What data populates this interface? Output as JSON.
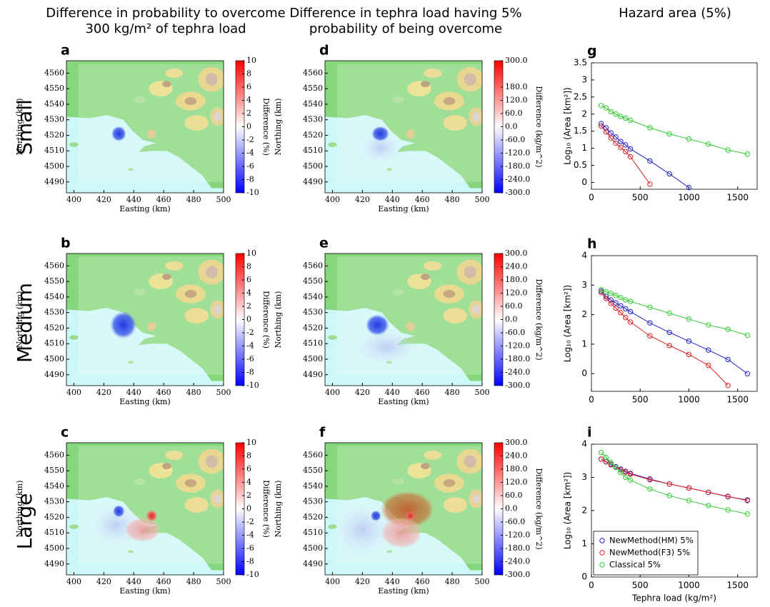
{
  "column_titles": [
    [
      "Difference in probability to overcome",
      "300 kg/m² of tephra load"
    ],
    [
      "Difference in  tephra load having 5%",
      "probability of being overcome"
    ],
    [
      "Hazard area  (5%)"
    ]
  ],
  "row_labels": [
    "Small",
    "Medium",
    "Large"
  ],
  "chart_data": [
    {
      "type": "heatmap",
      "panel": "a",
      "xlabel": "Easting (km)",
      "ylabel": "Northing (km)",
      "xlim": [
        395,
        500
      ],
      "ylim": [
        4483,
        4568
      ],
      "xticks": [
        400,
        420,
        440,
        460,
        480,
        500
      ],
      "yticks": [
        4490,
        4500,
        4510,
        4520,
        4530,
        4540,
        4550,
        4560
      ],
      "colorbar": {
        "label": "Difference (%)",
        "lim": [
          -10,
          10
        ],
        "colors": [
          "#0000ff",
          "#ffffff",
          "#ff0000"
        ],
        "ticks": [
          10,
          8,
          6,
          4,
          2,
          0,
          -2,
          -4,
          -6,
          -8,
          -10
        ]
      }
    },
    {
      "type": "heatmap",
      "panel": "b",
      "xlabel": "Easting (km)",
      "ylabel": "Northing (km)",
      "xlim": [
        395,
        500
      ],
      "ylim": [
        4483,
        4568
      ],
      "xticks": [
        400,
        420,
        440,
        460,
        480,
        500
      ],
      "yticks": [
        4490,
        4500,
        4510,
        4520,
        4530,
        4540,
        4550,
        4560
      ],
      "colorbar": {
        "label": "Difference (%)",
        "lim": [
          -10,
          10
        ],
        "colors": [
          "#0000ff",
          "#ffffff",
          "#ff0000"
        ],
        "ticks": [
          10,
          8,
          6,
          4,
          2,
          0,
          -2,
          -4,
          -6,
          -8,
          -10
        ]
      }
    },
    {
      "type": "heatmap",
      "panel": "c",
      "xlabel": "Easting (km)",
      "ylabel": "Northing (km)",
      "xlim": [
        395,
        500
      ],
      "ylim": [
        4483,
        4568
      ],
      "xticks": [
        400,
        420,
        440,
        460,
        480,
        500
      ],
      "yticks": [
        4490,
        4500,
        4510,
        4520,
        4530,
        4540,
        4550,
        4560
      ],
      "colorbar": {
        "label": "Difference (%)",
        "lim": [
          -10,
          10
        ],
        "colors": [
          "#0000ff",
          "#ffffff",
          "#ff0000"
        ],
        "ticks": [
          10,
          8,
          6,
          4,
          2,
          0,
          -2,
          -4,
          -6,
          -8,
          -10
        ]
      }
    },
    {
      "type": "heatmap",
      "panel": "d",
      "xlabel": "Easting (km)",
      "ylabel": "Northing (km)",
      "xlim": [
        395,
        500
      ],
      "ylim": [
        4483,
        4568
      ],
      "xticks": [
        400,
        420,
        440,
        460,
        480,
        500
      ],
      "yticks": [
        4490,
        4500,
        4510,
        4520,
        4530,
        4540,
        4550,
        4560
      ],
      "colorbar": {
        "label": "Difference (kg/m^2)",
        "lim": [
          -300,
          300
        ],
        "colors": [
          "#0000ff",
          "#ffffff",
          "#ff0000"
        ],
        "ticks": [
          {
            "value": 300,
            "label": "300.0"
          },
          {
            "value": 180,
            "label": "180.0"
          },
          {
            "value": 120,
            "label": "120.0"
          },
          {
            "value": 60,
            "label": "60.0"
          },
          {
            "value": 0,
            "label": "0.0"
          },
          {
            "value": -60,
            "label": "-60.0"
          },
          {
            "value": -120,
            "label": "-120.0"
          },
          {
            "value": -180,
            "label": "-180.0"
          },
          {
            "value": -240,
            "label": "-240.0"
          },
          {
            "value": -300,
            "label": "-300.0"
          }
        ]
      }
    },
    {
      "type": "heatmap",
      "panel": "e",
      "xlabel": "Easting (km)",
      "ylabel": "Northing (km)",
      "xlim": [
        395,
        500
      ],
      "ylim": [
        4483,
        4568
      ],
      "xticks": [
        400,
        420,
        440,
        460,
        480,
        500
      ],
      "yticks": [
        4490,
        4500,
        4510,
        4520,
        4530,
        4540,
        4550,
        4560
      ],
      "colorbar": {
        "label": "Difference (kg/m^2)",
        "lim": [
          -300,
          300
        ],
        "colors": [
          "#0000ff",
          "#ffffff",
          "#ff0000"
        ],
        "ticks": [
          {
            "value": 300,
            "label": "300.0"
          },
          {
            "value": 240,
            "label": "240.0"
          },
          {
            "value": 180,
            "label": "180.0"
          },
          {
            "value": 120,
            "label": "120.0"
          },
          {
            "value": 60,
            "label": "60.0"
          },
          {
            "value": 0,
            "label": "0.0"
          },
          {
            "value": -60,
            "label": "-60.0"
          },
          {
            "value": -120,
            "label": "-120.0"
          },
          {
            "value": -180,
            "label": "-180.0"
          },
          {
            "value": -240,
            "label": "-240.0"
          },
          {
            "value": -300,
            "label": "-300.0"
          }
        ]
      }
    },
    {
      "type": "heatmap",
      "panel": "f",
      "xlabel": "Easting (km)",
      "ylabel": "Northing (km)",
      "xlim": [
        395,
        500
      ],
      "ylim": [
        4483,
        4568
      ],
      "xticks": [
        400,
        420,
        440,
        460,
        480,
        500
      ],
      "yticks": [
        4490,
        4500,
        4510,
        4520,
        4530,
        4540,
        4550,
        4560
      ],
      "colorbar": {
        "label": "Difference (kg/m^2)",
        "lim": [
          -300,
          300
        ],
        "colors": [
          "#0000ff",
          "#ffffff",
          "#ff0000"
        ],
        "ticks": [
          {
            "value": 300,
            "label": "300.0"
          },
          {
            "value": 240,
            "label": "240.0"
          },
          {
            "value": 180,
            "label": "180.0"
          },
          {
            "value": 120,
            "label": "120.0"
          },
          {
            "value": 60,
            "label": "60.0"
          },
          {
            "value": 0,
            "label": "0.0"
          },
          {
            "value": -60,
            "label": "-60.0"
          },
          {
            "value": -120,
            "label": "-120.0"
          },
          {
            "value": -180,
            "label": "-180.0"
          },
          {
            "value": -240,
            "label": "-240.0"
          },
          {
            "value": -300,
            "label": "-300.0"
          }
        ]
      }
    },
    {
      "type": "line",
      "panel": "g",
      "ylabel": "Log₁₀ (Area [km²])",
      "xlim": [
        0,
        1700
      ],
      "ylim": [
        -0.2,
        3.5
      ],
      "xticks": [
        0,
        500,
        1000,
        1500
      ],
      "yticks": [
        0,
        0.5,
        1,
        1.5,
        2,
        2.5,
        3,
        3.5
      ],
      "series": [
        {
          "color": "#2222cc",
          "x": [
            100,
            150,
            200,
            250,
            300,
            350,
            400,
            600,
            800,
            1000
          ],
          "values": [
            1.72,
            1.6,
            1.45,
            1.33,
            1.2,
            1.1,
            0.98,
            0.63,
            0.25,
            -0.15
          ]
        },
        {
          "color": "#dd2222",
          "x": [
            100,
            150,
            200,
            250,
            300,
            350,
            400,
            600
          ],
          "values": [
            1.65,
            1.48,
            1.3,
            1.15,
            1.02,
            0.9,
            0.75,
            -0.05
          ]
        },
        {
          "color": "#33cc33",
          "x": [
            100,
            150,
            200,
            250,
            300,
            350,
            400,
            600,
            800,
            1000,
            1200,
            1400,
            1600
          ],
          "values": [
            2.25,
            2.18,
            2.07,
            2.0,
            1.93,
            1.88,
            1.82,
            1.6,
            1.42,
            1.27,
            1.12,
            0.95,
            0.83
          ]
        }
      ]
    },
    {
      "type": "line",
      "panel": "h",
      "ylabel": "Log₁₀ (Area [km²])",
      "xlim": [
        0,
        1700
      ],
      "ylim": [
        -0.6,
        4
      ],
      "xticks": [
        0,
        500,
        1000,
        1500
      ],
      "yticks": [
        0,
        1,
        2,
        3,
        4
      ],
      "series": [
        {
          "color": "#2222cc",
          "x": [
            100,
            150,
            200,
            250,
            300,
            350,
            400,
            600,
            800,
            1000,
            1200,
            1400,
            1600
          ],
          "values": [
            2.8,
            2.62,
            2.5,
            2.4,
            2.3,
            2.2,
            2.1,
            1.72,
            1.4,
            1.1,
            0.8,
            0.48,
            0.0
          ]
        },
        {
          "color": "#dd2222",
          "x": [
            100,
            150,
            200,
            250,
            300,
            350,
            400,
            600,
            800,
            1000,
            1200,
            1400
          ],
          "values": [
            2.75,
            2.55,
            2.38,
            2.22,
            2.07,
            1.9,
            1.75,
            1.28,
            0.95,
            0.65,
            0.28,
            -0.4
          ]
        },
        {
          "color": "#33cc33",
          "x": [
            100,
            150,
            200,
            250,
            300,
            350,
            400,
            600,
            800,
            1000,
            1200,
            1400,
            1600
          ],
          "values": [
            2.85,
            2.78,
            2.72,
            2.65,
            2.58,
            2.5,
            2.45,
            2.25,
            2.05,
            1.85,
            1.65,
            1.5,
            1.3
          ]
        }
      ]
    },
    {
      "type": "line",
      "panel": "i",
      "xlabel": "Tephra load (kg/m²)",
      "ylabel": "Log₁₀ (Area [km²])",
      "xlim": [
        0,
        1700
      ],
      "ylim": [
        0,
        4
      ],
      "xticks": [
        0,
        500,
        1000,
        1500
      ],
      "yticks": [
        0,
        1,
        2,
        3,
        4
      ],
      "legend": "lower left",
      "series": [
        {
          "name": "NewMethod(HM) 5%",
          "color": "#2222cc",
          "x": [
            100,
            150,
            200,
            250,
            300,
            350,
            400,
            600,
            800,
            1000,
            1200,
            1400,
            1600
          ],
          "values": [
            3.55,
            3.48,
            3.4,
            3.32,
            3.25,
            3.18,
            3.12,
            2.95,
            2.8,
            2.68,
            2.55,
            2.42,
            2.32
          ]
        },
        {
          "name": "NewMethod(F3) 5%",
          "color": "#dd2222",
          "x": [
            100,
            150,
            200,
            250,
            300,
            350,
            400,
            600,
            800,
            1000,
            1200,
            1400,
            1600
          ],
          "values": [
            3.55,
            3.47,
            3.38,
            3.3,
            3.23,
            3.16,
            3.1,
            2.93,
            2.8,
            2.68,
            2.55,
            2.43,
            2.3
          ]
        },
        {
          "name": "Classical 5%",
          "color": "#33cc33",
          "x": [
            100,
            150,
            200,
            250,
            300,
            350,
            400,
            600,
            800,
            1000,
            1200,
            1400,
            1600
          ],
          "values": [
            3.75,
            3.6,
            3.45,
            3.3,
            3.15,
            3.0,
            2.92,
            2.65,
            2.45,
            2.3,
            2.15,
            2.02,
            1.9
          ]
        }
      ]
    }
  ]
}
